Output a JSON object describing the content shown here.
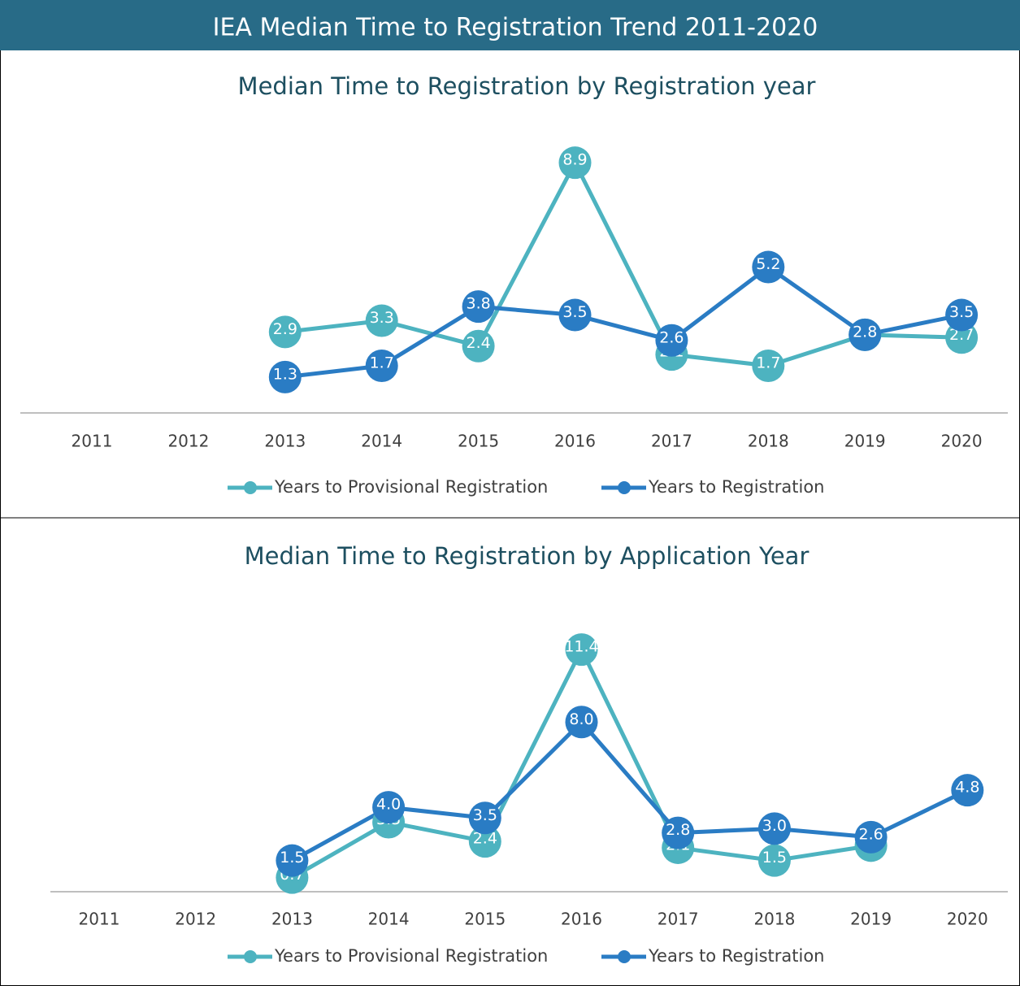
{
  "header": {
    "title": "IEA Median Time to Registration Trend 2011-2020"
  },
  "chart_data": [
    {
      "type": "line",
      "title": "Median Time to Registration by Registration year",
      "categories": [
        "2011",
        "2012",
        "2013",
        "2014",
        "2015",
        "2016",
        "2017",
        "2018",
        "2019",
        "2020"
      ],
      "ylim": [
        0,
        10
      ],
      "legend": "bottom",
      "series": [
        {
          "name": "Years to Provisional Registration",
          "color": "#4db3c0",
          "values": [
            null,
            null,
            2.9,
            3.3,
            2.4,
            8.9,
            2.1,
            1.7,
            2.8,
            2.7
          ],
          "value_labels": [
            null,
            null,
            "2.9",
            "3.3",
            "2.4",
            "8.9",
            "2.1",
            "1.7",
            "2.8",
            "2.7"
          ]
        },
        {
          "name": "Years to Registration",
          "color": "#2a7cc4",
          "values": [
            null,
            null,
            1.3,
            1.7,
            3.8,
            3.5,
            2.6,
            5.2,
            2.8,
            3.5
          ],
          "value_labels": [
            null,
            null,
            "1.3",
            "1.7",
            "3.8",
            "3.5",
            "2.6",
            "5.2",
            "2.8",
            "3.5"
          ]
        }
      ]
    },
    {
      "type": "line",
      "title": "Median Time to Registration by Application Year",
      "categories": [
        "2011",
        "2012",
        "2013",
        "2014",
        "2015",
        "2016",
        "2017",
        "2018",
        "2019",
        "2020"
      ],
      "ylim": [
        0,
        14
      ],
      "legend": "bottom",
      "series": [
        {
          "name": "Years to Provisional Registration",
          "color": "#4db3c0",
          "values": [
            null,
            null,
            0.7,
            3.3,
            2.4,
            11.4,
            2.1,
            1.5,
            2.2,
            null
          ],
          "value_labels": [
            null,
            null,
            "0.7",
            "3.3",
            "2.4",
            "11.4",
            "2.1",
            "1.5",
            "2.2",
            null
          ]
        },
        {
          "name": "Years to Registration",
          "color": "#2a7cc4",
          "values": [
            null,
            null,
            1.5,
            4.0,
            3.5,
            8.0,
            2.8,
            3.0,
            2.6,
            4.8
          ],
          "value_labels": [
            null,
            null,
            "1.5",
            "4.0",
            "3.5",
            "8.0",
            "2.8",
            "3.0",
            "2.6",
            "4.8"
          ]
        }
      ]
    }
  ]
}
